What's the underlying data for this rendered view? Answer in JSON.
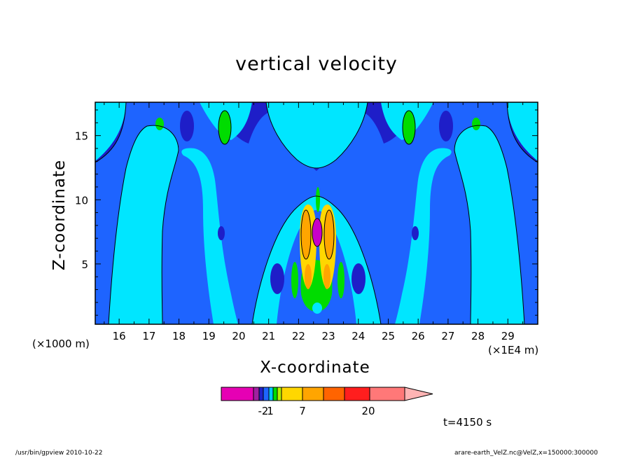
{
  "chart_data": {
    "type": "contour",
    "title": "vertical velocity",
    "xlabel": "X-coordinate",
    "ylabel": "Z-coordinate",
    "x_unit_left": "(×1000 m)",
    "x_unit_right": "(×1E4 m)",
    "xlim": [
      15.2,
      30.0
    ],
    "ylim": [
      0.3,
      17.6
    ],
    "x_ticks": [
      16,
      17,
      18,
      19,
      20,
      21,
      22,
      23,
      24,
      25,
      26,
      27,
      28,
      29
    ],
    "y_ticks": [
      5,
      10,
      15
    ],
    "colorbar": {
      "tick_labels": [
        "-2",
        "1",
        "7",
        "20"
      ],
      "colors": [
        "#e600b4",
        "#a020a0",
        "#2020c8",
        "#1e64ff",
        "#00c8ff",
        "#00dc00",
        "#b4f000",
        "#ffd700",
        "#ffa500",
        "#ff6400",
        "#ff1e1e",
        "#ff7878",
        "#ffb4b4"
      ]
    },
    "palette": {
      "navy": "#1e1ec8",
      "blue": "#1e64ff",
      "cyan": "#00e6ff",
      "green": "#00dc00",
      "yellow": "#ffd700",
      "orange": "#ffa500",
      "magenta": "#c800c8"
    },
    "time_label": "t=4150 s",
    "footer_left": "/usr/bin/gpview   2010-10-22",
    "footer_right": "arare-earth_VelZ.nc@VelZ,x=150000:300000"
  }
}
